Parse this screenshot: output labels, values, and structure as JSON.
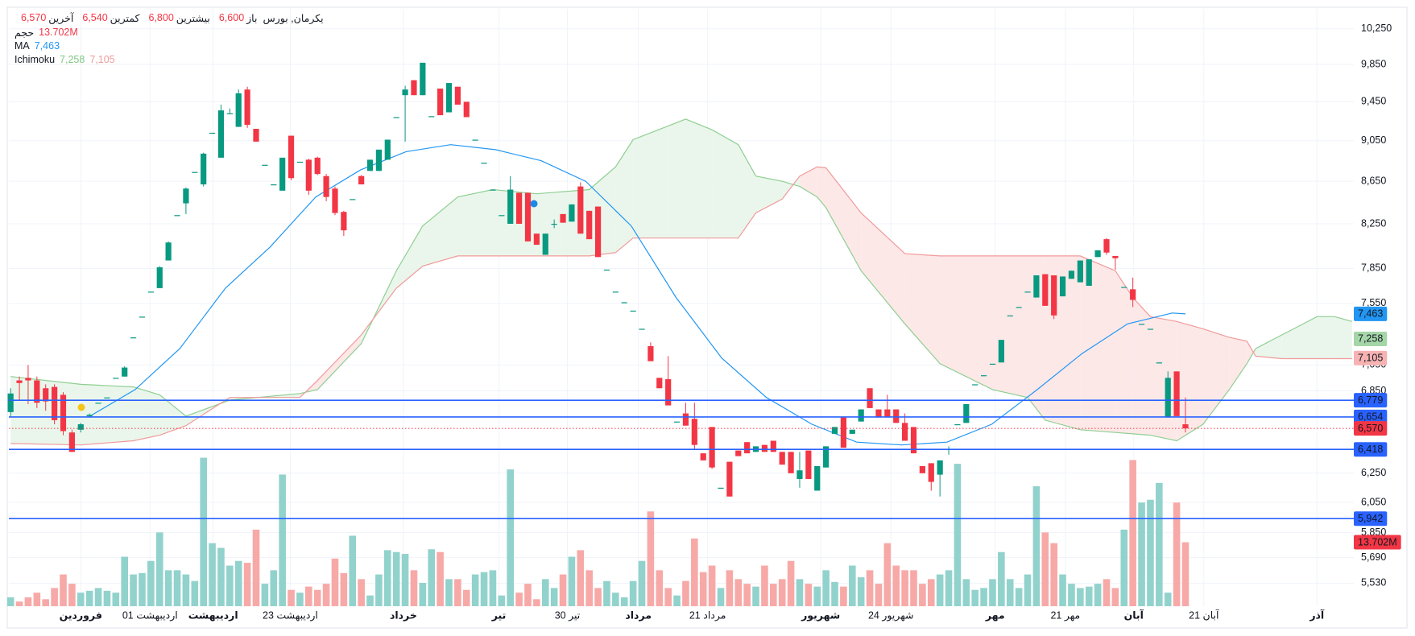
{
  "chart_data": {
    "type": "candlestick",
    "symbol": "یکرمان, بورس",
    "legend_fields": [
      {
        "name": "باز",
        "value": {
          "value": 6600,
          "label": "6,600"
        }
      },
      {
        "name": "بیشترین",
        "value": {
          "value": 6800,
          "label": "6,800"
        }
      },
      {
        "name": "کمترین",
        "value": {
          "value": 6540,
          "label": "6,540"
        }
      },
      {
        "name": "آخرین",
        "value": {
          "value": 6570,
          "label": "6,570"
        }
      }
    ],
    "log_scale": true,
    "grid": true,
    "xlim": [
      -0.2,
      153.2
    ],
    "ylim": [
      5390,
      10480
    ],
    "yticks": [
      {
        "value": 10250,
        "label": "10,250"
      },
      {
        "value": 9850,
        "label": "9,850"
      },
      {
        "value": 9450,
        "label": "9,450"
      },
      {
        "value": 9050,
        "label": "9,050"
      },
      {
        "value": 8650,
        "label": "8,650"
      },
      {
        "value": 8250,
        "label": "8,250"
      },
      {
        "value": 7850,
        "label": "7,850"
      },
      {
        "value": 7550,
        "label": "7,550"
      },
      {
        "value": 7050,
        "label": "7,050"
      },
      {
        "value": 6850,
        "label": "6,850"
      },
      {
        "value": 6250,
        "label": "6,250"
      },
      {
        "value": 6050,
        "label": "6,050"
      },
      {
        "value": 5850,
        "label": "5,850"
      },
      {
        "value": 5690,
        "label": "5,690"
      },
      {
        "value": 5530,
        "label": "5,530"
      }
    ],
    "xticks": [
      {
        "value": 8,
        "label": "فروردین",
        "major": true
      },
      {
        "value": 15.9,
        "label": "01 اردیبهشت",
        "major": false
      },
      {
        "value": 23.1,
        "label": "اردیبهشت",
        "major": true
      },
      {
        "value": 31.9,
        "label": "23 اردیبهشت",
        "major": false
      },
      {
        "value": 44.8,
        "label": "خرداد",
        "major": true
      },
      {
        "value": 55.7,
        "label": "تیر",
        "major": true
      },
      {
        "value": 63.5,
        "label": "30 تیر",
        "major": false
      },
      {
        "value": 71.6,
        "label": "مرداد",
        "major": true
      },
      {
        "value": 79.5,
        "label": "21 مرداد",
        "major": false
      },
      {
        "value": 92.4,
        "label": "شهریور",
        "major": true
      },
      {
        "value": 100.4,
        "label": "24 شهریور",
        "major": false
      },
      {
        "value": 112.3,
        "label": "مهر",
        "major": true
      },
      {
        "value": 120.3,
        "label": "21 مهر",
        "major": false
      },
      {
        "value": 128.1,
        "label": "آبان",
        "major": true
      },
      {
        "value": 136.1,
        "label": "21 آبان",
        "major": false
      },
      {
        "value": 149,
        "label": "آذر",
        "major": true
      }
    ],
    "up_color": "#089981",
    "down_color": "#f23645",
    "ohlc": [
      [
        6690,
        6870,
        6660,
        6830
      ],
      [
        6930,
        6960,
        6780,
        6910
      ],
      [
        6950,
        7050,
        6750,
        6930
      ],
      [
        6930,
        6960,
        6720,
        6760
      ],
      [
        6870,
        6900,
        6700,
        6770
      ],
      [
        6880,
        6900,
        6600,
        6630
      ],
      [
        6820,
        6840,
        6520,
        6550
      ],
      [
        6540,
        6560,
        6400,
        6400
      ],
      [
        6560,
        6610,
        6540,
        6600
      ],
      [
        6660,
        6680,
        6650,
        6670
      ],
      [
        6760,
        6760,
        6760,
        6760
      ],
      [
        6800,
        6800,
        6800,
        6800
      ],
      [
        6950,
        6950,
        6950,
        6950
      ],
      [
        6960,
        7040,
        6960,
        7030
      ],
      [
        7270,
        7270,
        7270,
        7270
      ],
      [
        7440,
        7440,
        7440,
        7440
      ],
      [
        7650,
        7650,
        7650,
        7650
      ],
      [
        7680,
        7870,
        7680,
        7860
      ],
      [
        7920,
        8090,
        7920,
        8080
      ],
      [
        8330,
        8330,
        8330,
        8330
      ],
      [
        8440,
        8590,
        8340,
        8580
      ],
      [
        8740,
        8740,
        8740,
        8740
      ],
      [
        8620,
        8930,
        8600,
        8920
      ],
      [
        9130,
        9130,
        9130,
        9130
      ],
      [
        8880,
        9420,
        8880,
        9360
      ],
      [
        9330,
        9380,
        9330,
        9330
      ],
      [
        9190,
        9580,
        9190,
        9540
      ],
      [
        9580,
        9610,
        9180,
        9210
      ],
      [
        9170,
        9170,
        9040,
        9040
      ],
      [
        8810,
        8810,
        8810,
        8810
      ],
      [
        8620,
        8620,
        8620,
        8620
      ],
      [
        8560,
        8880,
        8560,
        8880
      ],
      [
        9100,
        9100,
        8660,
        8680
      ],
      [
        8840,
        8840,
        8840,
        8840
      ],
      [
        8860,
        8870,
        8520,
        8560
      ],
      [
        8880,
        8890,
        8710,
        8720
      ],
      [
        8700,
        8720,
        8460,
        8500
      ],
      [
        8580,
        8600,
        8330,
        8350
      ],
      [
        8360,
        8370,
        8140,
        8190
      ],
      [
        8480,
        8480,
        8480,
        8480
      ],
      [
        8700,
        8710,
        8620,
        8620
      ],
      [
        8750,
        8860,
        8750,
        8860
      ],
      [
        8750,
        8960,
        8750,
        8960
      ],
      [
        8860,
        9060,
        8860,
        9060
      ],
      [
        9290,
        9290,
        9290,
        9290
      ],
      [
        9520,
        9620,
        9040,
        9580
      ],
      [
        9680,
        9680,
        9520,
        9520
      ],
      [
        9520,
        9870,
        9520,
        9870
      ],
      [
        9300,
        9300,
        9300,
        9300
      ],
      [
        9590,
        9590,
        9310,
        9310
      ],
      [
        9340,
        9650,
        9340,
        9650
      ],
      [
        9610,
        9610,
        9420,
        9420
      ],
      [
        9450,
        9450,
        9290,
        9290
      ],
      [
        9060,
        9060,
        9060,
        9060
      ],
      [
        8830,
        8830,
        8830,
        8830
      ],
      [
        8570,
        8570,
        8570,
        8570
      ],
      [
        8330,
        8330,
        8330,
        8330
      ],
      [
        8250,
        8700,
        8250,
        8570
      ],
      [
        8540,
        8540,
        8250,
        8250
      ],
      [
        8540,
        8540,
        8090,
        8090
      ],
      [
        8160,
        8160,
        8060,
        8060
      ],
      [
        7970,
        8160,
        7970,
        8160
      ],
      [
        8250,
        8290,
        8210,
        8250
      ],
      [
        8340,
        8340,
        8260,
        8260
      ],
      [
        8270,
        8430,
        8270,
        8430
      ],
      [
        8600,
        8640,
        8160,
        8160
      ],
      [
        8370,
        8370,
        8110,
        8110
      ],
      [
        8410,
        8410,
        7950,
        7950
      ],
      [
        7840,
        7840,
        7840,
        7840
      ],
      [
        7650,
        7650,
        7650,
        7650
      ],
      [
        7560,
        7560,
        7560,
        7560
      ],
      [
        7490,
        7490,
        7490,
        7490
      ],
      [
        7340,
        7340,
        7340,
        7340
      ],
      [
        7200,
        7230,
        7080,
        7080
      ],
      [
        6950,
        6950,
        6870,
        6870
      ],
      [
        6940,
        7120,
        6740,
        6740
      ],
      [
        6620,
        6620,
        6620,
        6620
      ],
      [
        6680,
        6760,
        6590,
        6590
      ],
      [
        6640,
        6760,
        6420,
        6450
      ],
      [
        6390,
        6390,
        6340,
        6340
      ],
      [
        6580,
        6580,
        6280,
        6290
      ],
      [
        6150,
        6150,
        6150,
        6150
      ],
      [
        6330,
        6330,
        6090,
        6090
      ],
      [
        6410,
        6410,
        6370,
        6370
      ],
      [
        6470,
        6470,
        6390,
        6390
      ],
      [
        6400,
        6440,
        6400,
        6440
      ],
      [
        6450,
        6450,
        6400,
        6400
      ],
      [
        6480,
        6480,
        6400,
        6400
      ],
      [
        6400,
        6400,
        6310,
        6310
      ],
      [
        6400,
        6400,
        6250,
        6250
      ],
      [
        6210,
        6400,
        6150,
        6270
      ],
      [
        6410,
        6410,
        6210,
        6210
      ],
      [
        6130,
        6300,
        6130,
        6300
      ],
      [
        6290,
        6440,
        6290,
        6440
      ],
      [
        6530,
        6580,
        6530,
        6580
      ],
      [
        6650,
        6650,
        6430,
        6430
      ],
      [
        6530,
        6560,
        6530,
        6560
      ],
      [
        6620,
        6710,
        6620,
        6710
      ],
      [
        6870,
        6870,
        6720,
        6720
      ],
      [
        6710,
        6710,
        6650,
        6650
      ],
      [
        6710,
        6820,
        6650,
        6650
      ],
      [
        6710,
        6710,
        6610,
        6610
      ],
      [
        6610,
        6680,
        6480,
        6480
      ],
      [
        6580,
        6580,
        6390,
        6390
      ],
      [
        6300,
        6300,
        6250,
        6250
      ],
      [
        6320,
        6320,
        6130,
        6190
      ],
      [
        6240,
        6340,
        6090,
        6340
      ],
      [
        6420,
        6440,
        6380,
        6420
      ],
      [
        6600,
        6600,
        6600,
        6600
      ],
      [
        6610,
        6750,
        6610,
        6750
      ],
      [
        6900,
        6900,
        6900,
        6900
      ],
      [
        6970,
        6970,
        6970,
        6970
      ],
      [
        7060,
        7060,
        7060,
        7060
      ],
      [
        7070,
        7250,
        7070,
        7250
      ],
      [
        7450,
        7450,
        7450,
        7450
      ],
      [
        7520,
        7520,
        7520,
        7520
      ],
      [
        7650,
        7650,
        7650,
        7650
      ],
      [
        7600,
        7790,
        7600,
        7790
      ],
      [
        7800,
        7800,
        7530,
        7530
      ],
      [
        7790,
        7790,
        7420,
        7450
      ],
      [
        7610,
        7780,
        7610,
        7780
      ],
      [
        7760,
        7830,
        7760,
        7830
      ],
      [
        7730,
        7920,
        7730,
        7920
      ],
      [
        7700,
        7930,
        7700,
        7930
      ],
      [
        7950,
        8010,
        7950,
        8010
      ],
      [
        8110,
        8120,
        7970,
        7990
      ],
      [
        7960,
        7960,
        7840,
        7940
      ],
      [
        7690,
        7690,
        7690,
        7690
      ],
      [
        7670,
        7770,
        7520,
        7580
      ],
      [
        7380,
        7380,
        7380,
        7380
      ],
      [
        7340,
        7340,
        7340,
        7340
      ],
      [
        7070,
        7070,
        7070,
        7070
      ],
      [
        6650,
        7000,
        6650,
        6950
      ],
      [
        7000,
        7000,
        6660,
        6660
      ],
      [
        6600,
        6800,
        6540,
        6570
      ]
    ],
    "volume": {
      "name": "حجم",
      "ylim": [
        0,
        40
      ],
      "up_color": "#92d2cc",
      "down_color": "#f7a9a7",
      "label_color": "#f23645",
      "values": [
        1.9,
        1.0,
        1.9,
        2.9,
        1.5,
        3.9,
        6.8,
        4.8,
        2.9,
        3.3,
        3.9,
        3.3,
        2.9,
        10.6,
        6.8,
        7.1,
        9.7,
        15.8,
        7.7,
        7.7,
        6.8,
        5.4,
        31.8,
        13.5,
        12.5,
        8.7,
        9.7,
        9.3,
        16.4,
        4.8,
        7.7,
        28.2,
        3.5,
        2.9,
        4.2,
        3.5,
        4.8,
        10.2,
        7.1,
        15.1,
        5.8,
        2.3,
        6.8,
        12.0,
        11.6,
        11.2,
        7.7,
        5.0,
        12.2,
        11.6,
        5.8,
        5.8,
        3.5,
        6.8,
        7.3,
        7.7,
        2.3,
        29.3,
        2.9,
        4.8,
        1.5,
        5.8,
        3.9,
        6.8,
        10.6,
        12.0,
        7.7,
        3.9,
        5.4,
        2.9,
        1.9,
        5.4,
        9.7,
        20.3,
        7.7,
        3.9,
        2.3,
        5.4,
        14.5,
        7.3,
        8.7,
        3.9,
        7.7,
        5.8,
        4.8,
        4.2,
        8.7,
        4.8,
        5.8,
        9.7,
        5.8,
        4.8,
        4.2,
        7.7,
        5.2,
        4.2,
        8.7,
        6.2,
        7.7,
        4.8,
        13.5,
        8.7,
        7.7,
        7.7,
        4.8,
        5.8,
        6.8,
        7.7,
        30.5,
        5.8,
        3.5,
        3.9,
        5.8,
        11.6,
        5.8,
        3.9,
        6.8,
        25.7,
        15.8,
        13.5,
        6.8,
        4.8,
        3.9,
        4.2,
        4.8,
        5.8,
        3.9,
        16.4,
        31.3,
        22.2,
        22.8,
        26.4,
        2.9,
        22.2,
        13.702
      ],
      "value_labels": {
        "134": "13.702M"
      }
    },
    "ma": {
      "name": "MA",
      "color": "#2196f3",
      "x": [
        9.05,
        14.2,
        19.3,
        24.5,
        29.6,
        34.8,
        39.9,
        45.1,
        50.2,
        55.3,
        60.5,
        65.6,
        70.8,
        75.9,
        81.1,
        86.2,
        91.4,
        96.5,
        101.6,
        106.8,
        111.9,
        117.1,
        122.2,
        127.4,
        132.5,
        134
      ],
      "values": [
        6660,
        6860,
        7180,
        7680,
        8040,
        8500,
        8760,
        8940,
        9010,
        8960,
        8850,
        8650,
        8230,
        7600,
        7105,
        6800,
        6600,
        6470,
        6450,
        6470,
        6600,
        6860,
        7140,
        7380,
        7470,
        7463
      ],
      "value_labels": {
        "25": "7,463"
      }
    },
    "ichimoku": {
      "name": "Ichimoku",
      "span_a_color": "#8fcf92",
      "span_b_color": "#f19a9a",
      "fill_up_color": "#e6f4e7",
      "fill_down_color": "#fde4e4",
      "x": [
        0,
        8,
        14,
        17,
        20,
        25,
        33,
        35,
        40,
        44,
        47,
        51,
        55,
        60,
        66,
        69,
        71,
        75,
        77,
        80,
        83,
        85,
        88,
        90,
        92,
        93,
        97,
        102,
        106,
        112,
        116,
        118,
        122,
        126,
        128,
        130,
        133,
        136,
        139,
        141,
        142,
        145,
        149,
        151,
        153
      ],
      "span_a": [
        6960,
        6900,
        6880,
        6820,
        6660,
        6780,
        6830,
        6860,
        7220,
        7830,
        8230,
        8500,
        8570,
        8530,
        8570,
        8790,
        9060,
        9200,
        9270,
        9160,
        9010,
        8700,
        8650,
        8600,
        8500,
        8400,
        7830,
        7380,
        7060,
        6860,
        6800,
        6630,
        6560,
        6540,
        6530,
        6520,
        6480,
        6600,
        6860,
        7060,
        7180,
        7290,
        7440,
        7440,
        7400
      ],
      "span_b": [
        6460,
        6450,
        6480,
        6520,
        6590,
        6800,
        6800,
        6930,
        7290,
        7680,
        7870,
        7960,
        7960,
        7960,
        7960,
        7990,
        8120,
        8120,
        8120,
        8120,
        8120,
        8350,
        8480,
        8700,
        8790,
        8780,
        8350,
        7980,
        7960,
        7960,
        7960,
        7960,
        7960,
        7830,
        7600,
        7440,
        7400,
        7340,
        7270,
        7240,
        7120,
        7100,
        7100,
        7100,
        7100
      ],
      "values": [
        {
          "value": 7258,
          "label": "7,258",
          "color": "#a5d6a7",
          "text_color": "#131722"
        },
        {
          "value": 7105,
          "label": "7,105",
          "color": "#f7b2b2",
          "text_color": "#131722"
        }
      ]
    },
    "hlines": {
      "color": "#2962ff",
      "levels": [
        {
          "value": 6779,
          "label": "6,779"
        },
        {
          "value": 6654,
          "label": "6,654"
        },
        {
          "value": 6418,
          "label": "6,418"
        },
        {
          "value": 5942,
          "label": "5,942"
        }
      ]
    },
    "price_line": {
      "value": 6570,
      "label": "6,570",
      "color": "#f23645"
    }
  }
}
